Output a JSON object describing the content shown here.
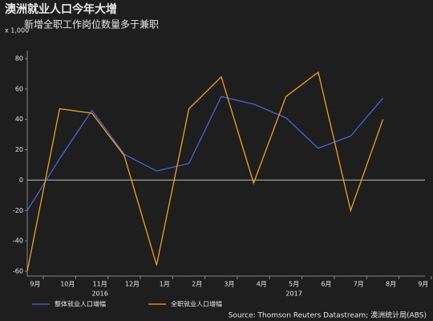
{
  "chart_data": {
    "type": "line",
    "title": "澳洲就业人口今年大增",
    "subtitle": "新增全职工作岗位数量多于兼职",
    "y_unit": "x 1,000",
    "categories": [
      "9月",
      "10月",
      "11月",
      "12月",
      "1月",
      "2月",
      "3月",
      "4月",
      "5月",
      "6月",
      "7月",
      "8月",
      "9月"
    ],
    "x_groups": [
      {
        "label": "2016",
        "category": "11月"
      },
      {
        "label": "2017",
        "category": "5月"
      }
    ],
    "series": [
      {
        "name": "整体就业人口增幅",
        "color": "#4a63d8",
        "values": [
          -20,
          14,
          46,
          17,
          6,
          11,
          55,
          50,
          41,
          21,
          29,
          54,
          null
        ]
      },
      {
        "name": "全职就业人口增幅",
        "color": "#f0a020",
        "values": [
          -60,
          47,
          44,
          16,
          -56,
          47,
          68,
          -2,
          55,
          71,
          -20,
          40,
          null
        ]
      }
    ],
    "ylim": [
      -60,
      80
    ],
    "yticks": [
      -60,
      -40,
      -20,
      0,
      20,
      40,
      60,
      80
    ],
    "source": "Source: Thomson Reuters Datastream; 澳洲统计局(ABS)"
  }
}
